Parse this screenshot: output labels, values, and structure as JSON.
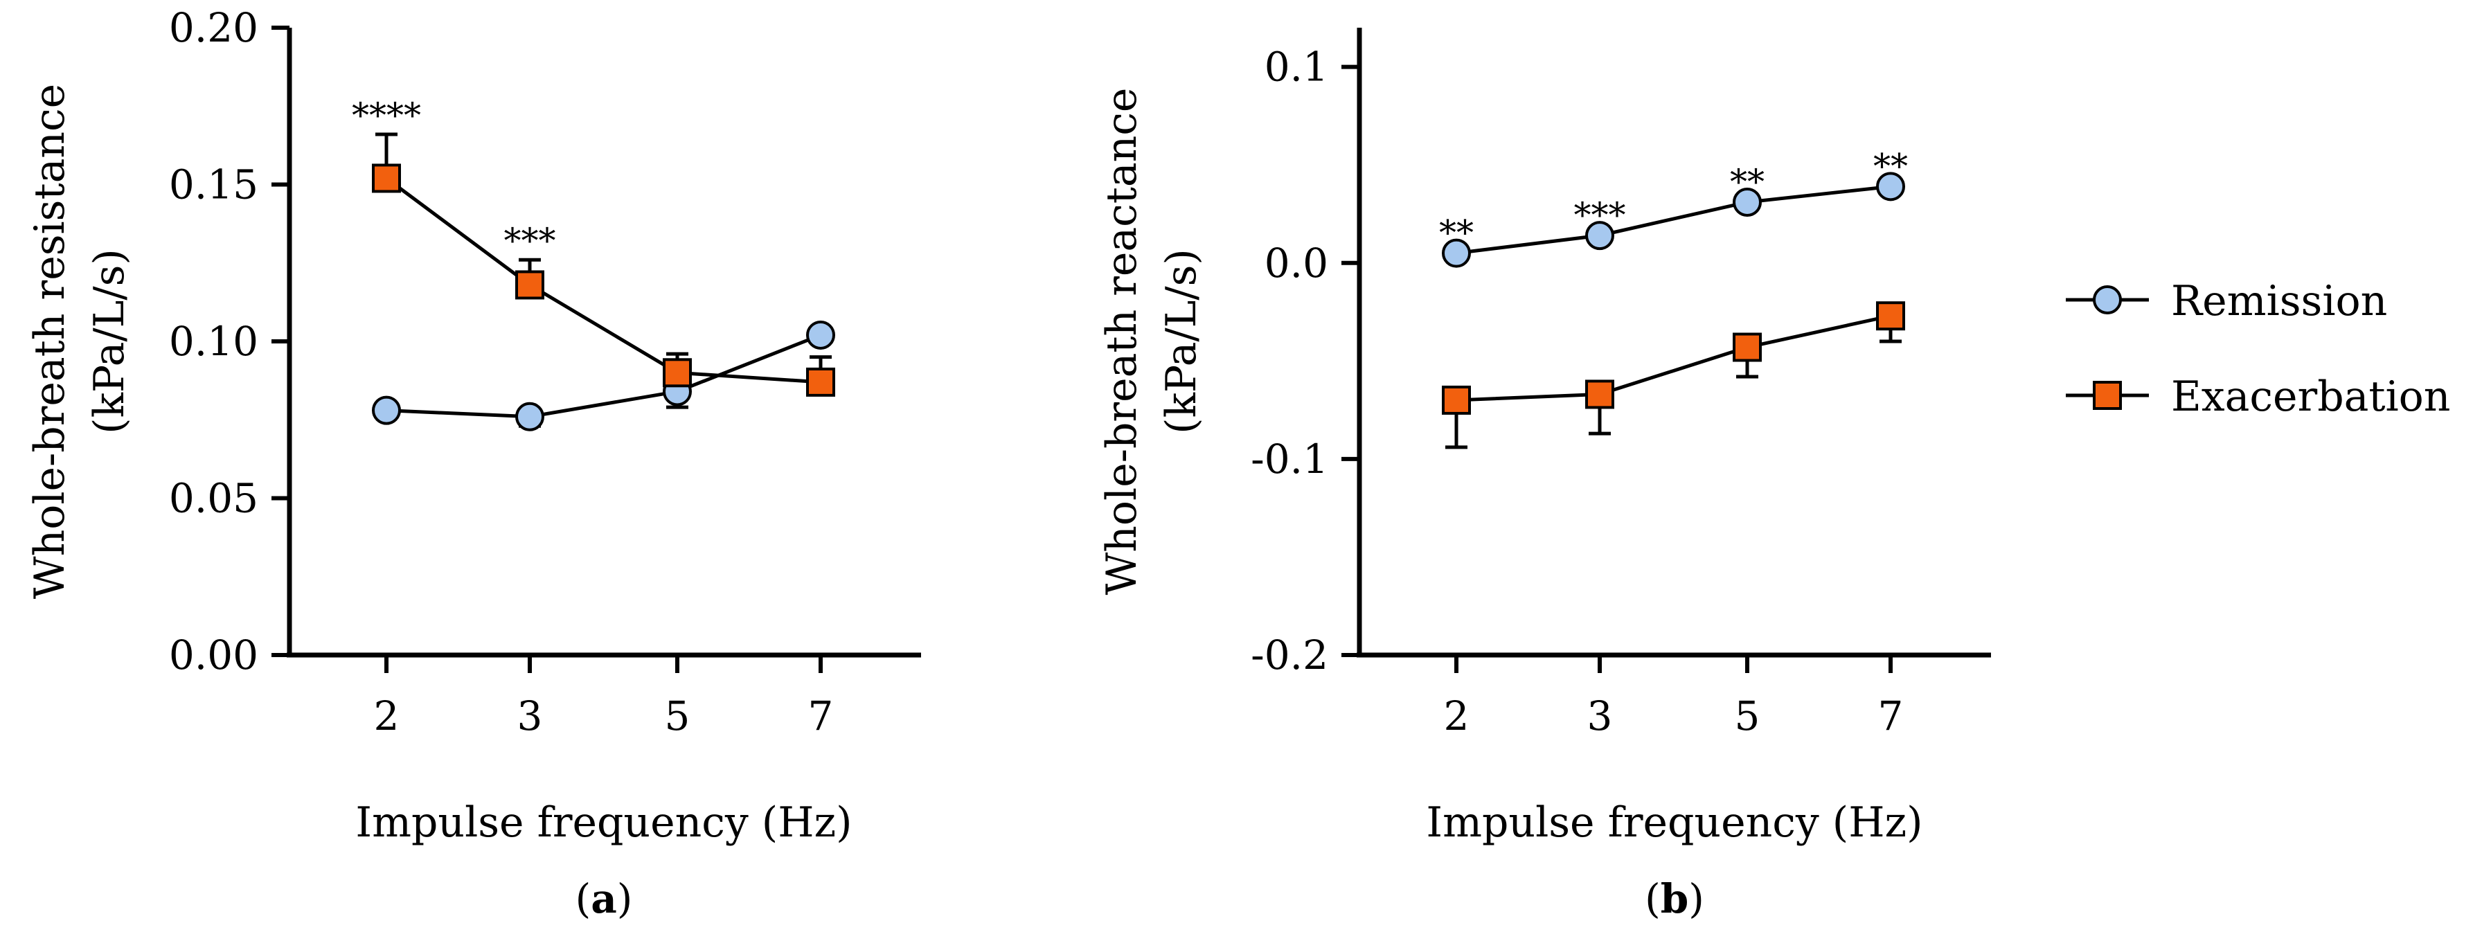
{
  "colors": {
    "remission": "#a6c8ef",
    "exacerbation": "#f2600e",
    "line": "#000000"
  },
  "legend": {
    "remission": "Remission",
    "exacerbation": "Exacerbation"
  },
  "chart_data": [
    {
      "type": "line",
      "panel_label": "(a)",
      "panel_letter": "a",
      "xlabel": "Impulse frequency (Hz)",
      "ylabel_line1": "Whole-breath resistance",
      "ylabel_line2": "(kPa/L/s)",
      "categories": [
        "2",
        "3",
        "5",
        "7"
      ],
      "ylim": [
        0,
        0.2
      ],
      "yticks": [
        0,
        0.05,
        0.1,
        0.15,
        0.2
      ],
      "ytick_labels": [
        "0.00",
        "0.05",
        "0.10",
        "0.15",
        "0.20"
      ],
      "series": [
        {
          "name": "Remission",
          "values": [
            0.078,
            0.076,
            0.084,
            0.102
          ],
          "err": [
            0.001,
            0.003,
            0.005,
            0.001
          ]
        },
        {
          "name": "Exacerbation",
          "values": [
            0.152,
            0.118,
            0.09,
            0.087
          ],
          "err": [
            0.014,
            0.008,
            0.006,
            0.008
          ]
        }
      ],
      "annotations": [
        "****",
        "***",
        "",
        ""
      ]
    },
    {
      "type": "line",
      "panel_label": "(b)",
      "panel_letter": "b",
      "xlabel": "Impulse frequency (Hz)",
      "ylabel_line1": "Whole-breath reactance",
      "ylabel_line2": "(kPa/L/s)",
      "categories": [
        "2",
        "3",
        "5",
        "7"
      ],
      "ylim": [
        -0.2,
        0.12
      ],
      "yticks": [
        -0.2,
        -0.1,
        0.0,
        0.1
      ],
      "ytick_labels": [
        "-0.2",
        "-0.1",
        "0.0",
        "0.1"
      ],
      "series": [
        {
          "name": "Remission",
          "values": [
            0.005,
            0.014,
            0.031,
            0.039
          ],
          "err": [
            0.001,
            0.001,
            0.001,
            0.001
          ]
        },
        {
          "name": "Exacerbation",
          "values": [
            -0.07,
            -0.067,
            -0.043,
            -0.027
          ],
          "err": [
            0.024,
            0.02,
            0.015,
            0.013
          ]
        }
      ],
      "annotations": [
        "**",
        "***",
        "**",
        "**"
      ]
    }
  ]
}
